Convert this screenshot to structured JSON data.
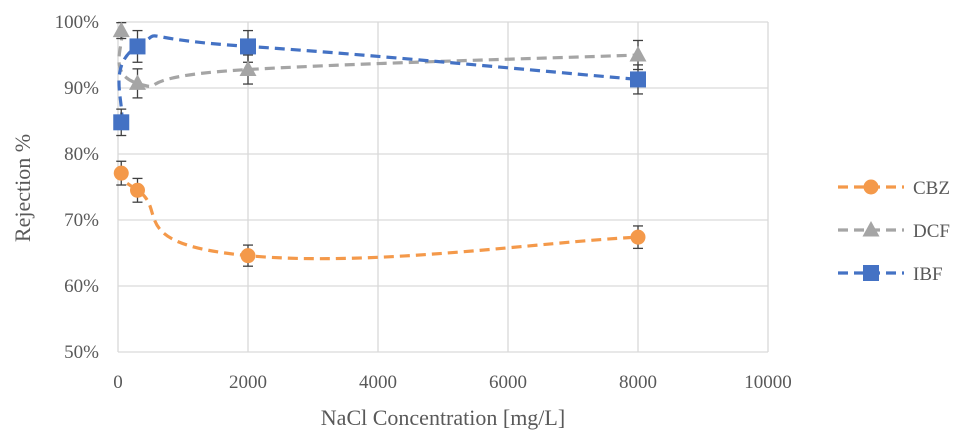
{
  "chart_data": {
    "type": "scatter",
    "title": "",
    "xlabel": "NaCl Concentration [mg/L]",
    "ylabel": "Rejection %",
    "xlim": [
      0,
      10000
    ],
    "ylim": [
      0.5,
      1.0
    ],
    "x_ticks": [
      0,
      2000,
      4000,
      6000,
      8000,
      10000
    ],
    "x_tick_labels": [
      "0",
      "2000",
      "4000",
      "6000",
      "8000",
      "10000"
    ],
    "y_ticks": [
      0.5,
      0.6,
      0.7,
      0.8,
      0.9,
      1.0
    ],
    "y_tick_labels": [
      "50%",
      "60%",
      "70%",
      "80%",
      "90%",
      "100%"
    ],
    "grid": true,
    "legend_position": "right",
    "series": [
      {
        "name": "CBZ",
        "color": "#F4994A",
        "marker": "circle",
        "line": "dashed-smooth",
        "x": [
          50,
          300,
          2000,
          8000
        ],
        "y": [
          0.771,
          0.745,
          0.646,
          0.674
        ],
        "error": [
          0.018,
          0.018,
          0.016,
          0.017
        ]
      },
      {
        "name": "DCF",
        "color": "#A5A5A5",
        "marker": "triangle",
        "line": "dashed-smooth",
        "x": [
          50,
          300,
          2000,
          8000
        ],
        "y": [
          0.987,
          0.907,
          0.928,
          0.95
        ],
        "error": [
          0.012,
          0.022,
          0.022,
          0.022
        ]
      },
      {
        "name": "IBF",
        "color": "#4472C4",
        "marker": "square",
        "line": "dashed-smooth",
        "x": [
          50,
          300,
          2000,
          8000
        ],
        "y": [
          0.848,
          0.963,
          0.963,
          0.913
        ],
        "error": [
          0.02,
          0.024,
          0.024,
          0.022
        ]
      }
    ]
  }
}
